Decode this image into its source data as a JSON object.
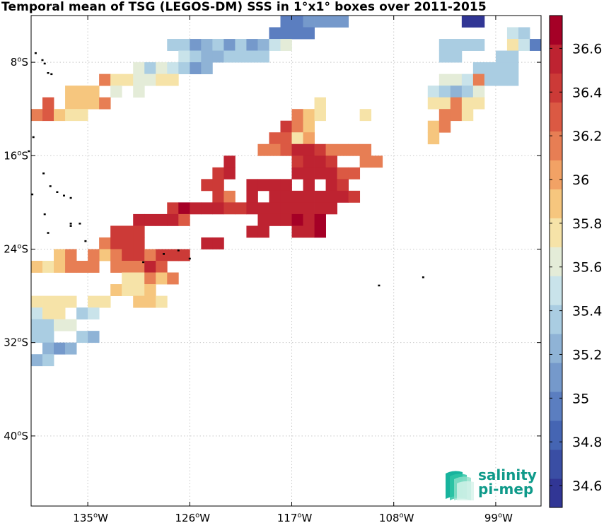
{
  "chart_data": {
    "type": "heatmap",
    "title": "Temporal mean of TSG (LEGOS-DM) SSS in 1°x1° boxes over 2011-2015",
    "x_ticks": [
      "135°W",
      "126°W",
      "117°W",
      "108°W",
      "99°W"
    ],
    "y_ticks": [
      "8°S",
      "16°S",
      "24°S",
      "32°S",
      "40°S"
    ],
    "lon_range": [
      -140,
      -95
    ],
    "lat_range": [
      -46,
      -4
    ],
    "grid": true,
    "colorbar": {
      "ticks": [
        "34.6",
        "34.8",
        "35",
        "35.2",
        "35.4",
        "35.6",
        "35.8",
        "36",
        "36.2",
        "36.4",
        "36.6"
      ],
      "range": [
        34.5,
        36.75
      ],
      "colors": [
        "#313695",
        "#3a4ea4",
        "#4565b3",
        "#5b7ec0",
        "#7599cb",
        "#8fb3d6",
        "#aacde2",
        "#c9e3ea",
        "#e4ecd8",
        "#f6e3a8",
        "#f6c67e",
        "#f2a265",
        "#e77e54",
        "#db5943",
        "#cc3a37",
        "#be2331",
        "#a50026"
      ]
    },
    "cells": [
      [
        -117.5,
        -4.5,
        34.9
      ],
      [
        -116.5,
        -4.5,
        34.9
      ],
      [
        -115.5,
        -4.5,
        35.1
      ],
      [
        -114.5,
        -4.5,
        35.1
      ],
      [
        -113.5,
        -4.5,
        35.1
      ],
      [
        -112.5,
        -4.5,
        35.1
      ],
      [
        -101.5,
        -4.5,
        34.6
      ],
      [
        -100.5,
        -4.5,
        34.6
      ],
      [
        -118.5,
        -5.5,
        34.9
      ],
      [
        -117.5,
        -5.5,
        34.9
      ],
      [
        -116.5,
        -5.5,
        34.9
      ],
      [
        -115.5,
        -5.5,
        34.9
      ],
      [
        -97.5,
        -5.5,
        35.5
      ],
      [
        -96.5,
        -5.5,
        35.4
      ],
      [
        -127.5,
        -6.5,
        35.3
      ],
      [
        -126.5,
        -6.5,
        35.3
      ],
      [
        -125.5,
        -6.5,
        35.1
      ],
      [
        -124.5,
        -6.5,
        35.2
      ],
      [
        -123.5,
        -6.5,
        35.4
      ],
      [
        -122.5,
        -6.5,
        35.1
      ],
      [
        -121.5,
        -6.5,
        35.4
      ],
      [
        -120.5,
        -6.5,
        35.1
      ],
      [
        -119.5,
        -6.5,
        35.2
      ],
      [
        -118.5,
        -6.5,
        35.5
      ],
      [
        -117.5,
        -6.5,
        35.6
      ],
      [
        -103.5,
        -6.5,
        35.3
      ],
      [
        -102.5,
        -6.5,
        35.3
      ],
      [
        -101.5,
        -6.5,
        35.3
      ],
      [
        -100.5,
        -6.5,
        35.3
      ],
      [
        -97.5,
        -6.5,
        35.7
      ],
      [
        -96.5,
        -6.5,
        35.5
      ],
      [
        -95.5,
        -6.5,
        35.0
      ],
      [
        -126.5,
        -7.5,
        35.5
      ],
      [
        -125.5,
        -7.5,
        35.3
      ],
      [
        -124.5,
        -7.5,
        35.2
      ],
      [
        -123.5,
        -7.5,
        35.2
      ],
      [
        -122.5,
        -7.5,
        35.4
      ],
      [
        -121.5,
        -7.5,
        35.3
      ],
      [
        -120.5,
        -7.5,
        35.3
      ],
      [
        -119.5,
        -7.5,
        35.3
      ],
      [
        -103.5,
        -7.5,
        35.3
      ],
      [
        -102.5,
        -7.5,
        35.3
      ],
      [
        -98.5,
        -7.5,
        35.3
      ],
      [
        -97.5,
        -7.5,
        35.3
      ],
      [
        -130.5,
        -8.5,
        35.6
      ],
      [
        -129.5,
        -8.5,
        35.4
      ],
      [
        -128.5,
        -8.5,
        35.6
      ],
      [
        -127.5,
        -8.5,
        35.5
      ],
      [
        -126.5,
        -8.5,
        35.3
      ],
      [
        -125.5,
        -8.5,
        35.1
      ],
      [
        -124.5,
        -8.5,
        35.2
      ],
      [
        -100.5,
        -8.5,
        35.4
      ],
      [
        -99.5,
        -8.5,
        35.3
      ],
      [
        -98.5,
        -8.5,
        35.3
      ],
      [
        -97.5,
        -8.5,
        35.3
      ],
      [
        -133.5,
        -9.5,
        36.2
      ],
      [
        -132.5,
        -9.5,
        35.7
      ],
      [
        -131.5,
        -9.5,
        35.7
      ],
      [
        -130.5,
        -9.5,
        35.6
      ],
      [
        -129.5,
        -9.5,
        35.6
      ],
      [
        -128.5,
        -9.5,
        35.7
      ],
      [
        -127.5,
        -9.5,
        35.7
      ],
      [
        -103.5,
        -9.5,
        35.6
      ],
      [
        -102.5,
        -9.5,
        35.6
      ],
      [
        -101.5,
        -9.5,
        35.5
      ],
      [
        -100.5,
        -9.5,
        36.2
      ],
      [
        -99.5,
        -9.5,
        35.4
      ],
      [
        -98.5,
        -9.5,
        35.3
      ],
      [
        -97.5,
        -9.5,
        35.3
      ],
      [
        -136.5,
        -10.5,
        35.9
      ],
      [
        -135.5,
        -10.5,
        35.9
      ],
      [
        -134.5,
        -10.5,
        35.9
      ],
      [
        -132.5,
        -10.5,
        35.6
      ],
      [
        -130.5,
        -10.5,
        35.6
      ],
      [
        -104.5,
        -10.5,
        35.5
      ],
      [
        -103.5,
        -10.5,
        35.4
      ],
      [
        -102.5,
        -10.5,
        35.2
      ],
      [
        -101.5,
        -10.5,
        35.4
      ],
      [
        -100.5,
        -10.5,
        35.6
      ],
      [
        -138.5,
        -11.5,
        36.3
      ],
      [
        -136.5,
        -11.5,
        35.9
      ],
      [
        -135.5,
        -11.5,
        35.9
      ],
      [
        -134.5,
        -11.5,
        35.9
      ],
      [
        -133.5,
        -11.5,
        36.1
      ],
      [
        -114.5,
        -11.5,
        35.7
      ],
      [
        -104.5,
        -11.5,
        35.8
      ],
      [
        -103.5,
        -11.5,
        35.8
      ],
      [
        -102.5,
        -11.5,
        36.2
      ],
      [
        -101.5,
        -11.5,
        35.8
      ],
      [
        -100.5,
        -11.5,
        35.8
      ],
      [
        -139.5,
        -12.5,
        36.2
      ],
      [
        -138.5,
        -12.5,
        36.3
      ],
      [
        -137.5,
        -12.5,
        35.9
      ],
      [
        -136.5,
        -12.5,
        35.8
      ],
      [
        -135.5,
        -12.5,
        35.8
      ],
      [
        -116.5,
        -12.5,
        36.1
      ],
      [
        -115.5,
        -12.5,
        35.9
      ],
      [
        -114.5,
        -12.5,
        35.7
      ],
      [
        -110.5,
        -12.5,
        35.7
      ],
      [
        -103.5,
        -12.5,
        36.1
      ],
      [
        -102.5,
        -12.5,
        36.1
      ],
      [
        -101.5,
        -12.5,
        35.8
      ],
      [
        -117.5,
        -13.5,
        36.4
      ],
      [
        -116.5,
        -13.5,
        36.1
      ],
      [
        -115.5,
        -13.5,
        35.9
      ],
      [
        -104.5,
        -13.5,
        35.9
      ],
      [
        -103.5,
        -13.5,
        36.1
      ],
      [
        -118.5,
        -14.5,
        36.3
      ],
      [
        -117.5,
        -14.5,
        36.3
      ],
      [
        -116.5,
        -14.5,
        35.8
      ],
      [
        -115.5,
        -14.5,
        36.0
      ],
      [
        -104.5,
        -14.5,
        35.9
      ],
      [
        -119.5,
        -15.5,
        36.2
      ],
      [
        -118.5,
        -15.5,
        36.2
      ],
      [
        -117.5,
        -15.5,
        36.3
      ],
      [
        -116.5,
        -15.5,
        36.5
      ],
      [
        -115.5,
        -15.5,
        36.5
      ],
      [
        -114.5,
        -15.5,
        36.4
      ],
      [
        -113.5,
        -15.5,
        36.2
      ],
      [
        -112.5,
        -15.5,
        36.2
      ],
      [
        -111.5,
        -15.5,
        36.2
      ],
      [
        -110.5,
        -15.5,
        36.2
      ],
      [
        -122.5,
        -16.5,
        36.5
      ],
      [
        -116.5,
        -16.5,
        36.4
      ],
      [
        -115.5,
        -16.5,
        36.5
      ],
      [
        -114.5,
        -16.5,
        36.5
      ],
      [
        -113.5,
        -16.5,
        36.4
      ],
      [
        -110.5,
        -16.5,
        36.1
      ],
      [
        -109.5,
        -16.5,
        36.1
      ],
      [
        -123.5,
        -17.5,
        36.4
      ],
      [
        -122.5,
        -17.5,
        36.5
      ],
      [
        -116.5,
        -17.5,
        36.5
      ],
      [
        -115.5,
        -17.5,
        36.5
      ],
      [
        -114.5,
        -17.5,
        36.5
      ],
      [
        -113.5,
        -17.5,
        36.5
      ],
      [
        -112.5,
        -17.5,
        36.3
      ],
      [
        -111.5,
        -17.5,
        36.3
      ],
      [
        -124.5,
        -18.5,
        36.4
      ],
      [
        -123.5,
        -18.5,
        36.4
      ],
      [
        -120.5,
        -18.5,
        36.6
      ],
      [
        -119.5,
        -18.5,
        36.6
      ],
      [
        -118.5,
        -18.5,
        36.5
      ],
      [
        -117.5,
        -18.5,
        36.5
      ],
      [
        -115.5,
        -18.5,
        36.5
      ],
      [
        -113.5,
        -18.5,
        36.6
      ],
      [
        -112.5,
        -18.5,
        36.4
      ],
      [
        -123.5,
        -19.5,
        36.4
      ],
      [
        -122.5,
        -19.5,
        36.2
      ],
      [
        -120.5,
        -19.5,
        36.6
      ],
      [
        -118.5,
        -19.5,
        36.5
      ],
      [
        -117.5,
        -19.5,
        36.5
      ],
      [
        -116.5,
        -19.5,
        36.5
      ],
      [
        -115.5,
        -19.5,
        36.6
      ],
      [
        -114.5,
        -19.5,
        36.6
      ],
      [
        -113.5,
        -19.5,
        36.6
      ],
      [
        -112.5,
        -19.5,
        36.6
      ],
      [
        -111.5,
        -19.5,
        36.4
      ],
      [
        -127.5,
        -20.5,
        36.4
      ],
      [
        -126.5,
        -20.5,
        36.7
      ],
      [
        -125.5,
        -20.5,
        36.6
      ],
      [
        -124.5,
        -20.5,
        36.6
      ],
      [
        -123.5,
        -20.5,
        36.6
      ],
      [
        -122.5,
        -20.5,
        36.4
      ],
      [
        -121.5,
        -20.5,
        36.4
      ],
      [
        -120.5,
        -20.5,
        36.6
      ],
      [
        -119.5,
        -20.5,
        36.6
      ],
      [
        -118.5,
        -20.5,
        36.6
      ],
      [
        -117.5,
        -20.5,
        36.6
      ],
      [
        -116.5,
        -20.5,
        36.6
      ],
      [
        -115.5,
        -20.5,
        36.6
      ],
      [
        -114.5,
        -20.5,
        36.6
      ],
      [
        -113.5,
        -20.5,
        36.6
      ],
      [
        -130.5,
        -21.5,
        36.6
      ],
      [
        -129.5,
        -21.5,
        36.6
      ],
      [
        -128.5,
        -21.5,
        36.6
      ],
      [
        -127.5,
        -21.5,
        36.6
      ],
      [
        -126.5,
        -21.5,
        36.3
      ],
      [
        -119.5,
        -21.5,
        36.6
      ],
      [
        -118.5,
        -21.5,
        36.6
      ],
      [
        -117.5,
        -21.5,
        36.6
      ],
      [
        -116.5,
        -21.5,
        36.7
      ],
      [
        -115.5,
        -21.5,
        36.6
      ],
      [
        -114.5,
        -21.5,
        36.7
      ],
      [
        -132.5,
        -22.5,
        36.4
      ],
      [
        -131.5,
        -22.5,
        36.4
      ],
      [
        -130.5,
        -22.5,
        36.4
      ],
      [
        -120.5,
        -22.5,
        36.6
      ],
      [
        -119.5,
        -22.5,
        36.6
      ],
      [
        -116.5,
        -22.5,
        36.6
      ],
      [
        -115.5,
        -22.5,
        36.6
      ],
      [
        -114.5,
        -22.5,
        36.7
      ],
      [
        -133.5,
        -23.5,
        36.1
      ],
      [
        -132.5,
        -23.5,
        36.4
      ],
      [
        -131.5,
        -23.5,
        36.4
      ],
      [
        -130.5,
        -23.5,
        36.4
      ],
      [
        -124.5,
        -23.5,
        36.5
      ],
      [
        -123.5,
        -23.5,
        36.5
      ],
      [
        -133.5,
        -24.5,
        35.9
      ],
      [
        -132.5,
        -24.5,
        36.2
      ],
      [
        -131.5,
        -24.5,
        36.4
      ],
      [
        -130.5,
        -24.5,
        36.4
      ],
      [
        -129.5,
        -24.5,
        36.1
      ],
      [
        -128.5,
        -24.5,
        36.4
      ],
      [
        -127.5,
        -24.5,
        36.4
      ],
      [
        -126.5,
        -24.5,
        36.4
      ],
      [
        -137.5,
        -24.5,
        35.9
      ],
      [
        -136.5,
        -24.5,
        36.1
      ],
      [
        -134.5,
        -24.5,
        36.1
      ],
      [
        -139.5,
        -25.5,
        35.9
      ],
      [
        -138.5,
        -25.5,
        35.7
      ],
      [
        -137.5,
        -25.5,
        35.9
      ],
      [
        -136.5,
        -25.5,
        36.1
      ],
      [
        -135.5,
        -25.5,
        36.1
      ],
      [
        -134.5,
        -25.5,
        36.1
      ],
      [
        -132.5,
        -25.5,
        36.2
      ],
      [
        -131.5,
        -25.5,
        36.2
      ],
      [
        -130.5,
        -25.5,
        36.2
      ],
      [
        -129.5,
        -25.5,
        36.6
      ],
      [
        -128.5,
        -25.5,
        36.3
      ],
      [
        -131.5,
        -26.5,
        35.8
      ],
      [
        -130.5,
        -26.5,
        35.8
      ],
      [
        -129.5,
        -26.5,
        36.1
      ],
      [
        -128.5,
        -26.5,
        35.9
      ],
      [
        -127.5,
        -26.5,
        36.2
      ],
      [
        -132.5,
        -27.5,
        35.9
      ],
      [
        -131.5,
        -27.5,
        35.8
      ],
      [
        -130.5,
        -27.5,
        35.8
      ],
      [
        -129.5,
        -27.5,
        35.9
      ],
      [
        -139.5,
        -28.5,
        35.7
      ],
      [
        -138.5,
        -28.5,
        35.7
      ],
      [
        -137.5,
        -28.5,
        35.8
      ],
      [
        -136.5,
        -28.5,
        35.7
      ],
      [
        -134.5,
        -28.5,
        35.7
      ],
      [
        -133.5,
        -28.5,
        35.7
      ],
      [
        -130.5,
        -28.5,
        35.9
      ],
      [
        -129.5,
        -28.5,
        35.9
      ],
      [
        -128.5,
        -28.5,
        35.7
      ],
      [
        -139.5,
        -29.5,
        35.5
      ],
      [
        -138.5,
        -29.5,
        35.7
      ],
      [
        -137.5,
        -29.5,
        35.7
      ],
      [
        -135.5,
        -29.5,
        35.4
      ],
      [
        -134.5,
        -29.5,
        35.5
      ],
      [
        -139.5,
        -30.5,
        35.4
      ],
      [
        -138.5,
        -30.5,
        35.4
      ],
      [
        -137.5,
        -30.5,
        35.6
      ],
      [
        -136.5,
        -30.5,
        35.6
      ],
      [
        -139.5,
        -31.5,
        35.4
      ],
      [
        -138.5,
        -31.5,
        35.4
      ],
      [
        -135.5,
        -31.5,
        35.3
      ],
      [
        -134.5,
        -31.5,
        35.2
      ],
      [
        -138.5,
        -32.5,
        35.2
      ],
      [
        -137.5,
        -32.5,
        35.1
      ],
      [
        -136.5,
        -32.5,
        35.2
      ],
      [
        -139.5,
        -33.5,
        35.2
      ],
      [
        -138.5,
        -33.5,
        35.4
      ]
    ],
    "land_points": [
      [
        -139.6,
        -7.2
      ],
      [
        -139.0,
        -7.8
      ],
      [
        -138.8,
        -8.1
      ],
      [
        -138.5,
        -8.9
      ],
      [
        -138.2,
        -9.0
      ],
      [
        -139.8,
        -14.4
      ],
      [
        -140.2,
        -15.6
      ],
      [
        -138.9,
        -17.5
      ],
      [
        -138.3,
        -18.6
      ],
      [
        -137.7,
        -19.1
      ],
      [
        -137.1,
        -19.4
      ],
      [
        -136.5,
        -19.6
      ],
      [
        -139.9,
        -19.3
      ],
      [
        -138.8,
        -21.0
      ],
      [
        -136.5,
        -21.8
      ],
      [
        -135.7,
        -21.8
      ],
      [
        -136.5,
        -22.0
      ],
      [
        -138.5,
        -22.6
      ],
      [
        -135.2,
        -23.3
      ],
      [
        -130.1,
        -25.1
      ],
      [
        -128.3,
        -24.4
      ],
      [
        -126.0,
        -24.8
      ],
      [
        -127.0,
        -24.1
      ],
      [
        -109.3,
        -27.1
      ],
      [
        -105.4,
        -26.4
      ]
    ]
  },
  "logo": {
    "line1": "salinity",
    "line2": "pi-mep"
  }
}
